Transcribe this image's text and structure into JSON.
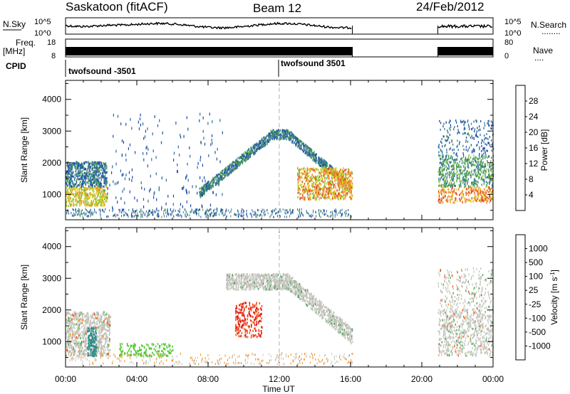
{
  "header": {
    "station": "Saskatoon (fitACF)",
    "beam": "Beam 12",
    "date": "24/Feb/2012"
  },
  "top_panels": {
    "nsky_label": "N.Sky",
    "nsearch_label": "N.Search",
    "nsky_ticks": [
      "10^5",
      "10^0"
    ],
    "nsearch_ticks": [
      "10^5",
      "10^0"
    ],
    "freq_label": "Freq.",
    "freq_unit": "[MHz]",
    "freq_ticks": [
      "18",
      "8"
    ],
    "nave_label": "Nave",
    "nave_ticks": [
      "80",
      "0"
    ],
    "cpid_label": "CPID",
    "cpid_segments": [
      "twofsound -3501",
      "twofsound 3501"
    ]
  },
  "colors": {
    "power_scale": [
      "#0a1fd6",
      "#1f4aa8",
      "#2c6aa0",
      "#3a8a6e",
      "#55a845",
      "#8cc43a",
      "#d8d020",
      "#f0a020",
      "#f07020",
      "#e03c1c",
      "#e00a0a"
    ],
    "velocity_scale": [
      "#e00a0a",
      "#f05018",
      "#f08818",
      "#f0c020",
      "#c0c0b0",
      "#c8c8c8",
      "#50c830",
      "#3ca050",
      "#2a8a88",
      "#1a4aa8"
    ],
    "velocity_common": "#c4c4bc",
    "axis": "#000000",
    "midday_line": "#b0b0b0"
  },
  "chart_data": [
    {
      "type": "heatmap",
      "title": "",
      "xlabel": "",
      "ylabel": "Slant Range [km]",
      "x_ticks": [
        "00:00",
        "04:00",
        "08:00",
        "12:00",
        "16:00",
        "20:00",
        "00:00"
      ],
      "y_ticks": [
        "1000",
        "2000",
        "3000",
        "4000"
      ],
      "ylim": [
        200,
        4600
      ],
      "colorbar_label": "Power [dB]",
      "colorbar_ticks": [
        "4",
        "8",
        "12",
        "16",
        "20",
        "24",
        "28"
      ],
      "colorbar_range": [
        0,
        32
      ],
      "data_gap_hours": [
        16.1,
        20.9
      ],
      "features": [
        {
          "name": "early evening band",
          "t": [
            0.0,
            2.3
          ],
          "range_km": [
            600,
            2000
          ],
          "power_db": 12
        },
        {
          "name": "morning scatter",
          "t": [
            2.3,
            8.5
          ],
          "range_km": [
            300,
            3400
          ],
          "power_db": 6
        },
        {
          "name": "arc",
          "t": [
            7.5,
            16.1
          ],
          "range_km": [
            1000,
            3000
          ],
          "power_db": 10
        },
        {
          "name": "afternoon strong band",
          "t": [
            13.0,
            16.1
          ],
          "range_km": [
            800,
            1800
          ],
          "power_db": 24
        },
        {
          "name": "late evening band",
          "t": [
            20.9,
            24.0
          ],
          "range_km": [
            700,
            3300
          ],
          "power_db": 18
        }
      ]
    },
    {
      "type": "heatmap",
      "title": "",
      "xlabel": "Time UT",
      "ylabel": "Slant Range [km]",
      "x_ticks": [
        "00:00",
        "04:00",
        "08:00",
        "12:00",
        "16:00",
        "20:00",
        "00:00"
      ],
      "y_ticks": [
        "1000",
        "2000",
        "3000",
        "4000"
      ],
      "ylim": [
        200,
        4600
      ],
      "colorbar_label": "Velocity [m s",
      "colorbar_label_sup": "-1",
      "colorbar_label_tail": "]",
      "colorbar_ticks": [
        "1000",
        "500",
        "100",
        "25",
        "-25",
        "-100",
        "-500",
        "-1000"
      ],
      "colorbar_range": [
        -1200,
        1200
      ],
      "data_gap_hours": [
        16.1,
        20.9
      ],
      "features": [
        {
          "name": "ground scatter band",
          "t": [
            0.0,
            2.5
          ],
          "range_km": [
            500,
            1900
          ],
          "velocity_ms": 0
        },
        {
          "name": "green patches",
          "t": [
            3.0,
            6.0
          ],
          "range_km": [
            500,
            900
          ],
          "velocity_ms": 150
        },
        {
          "name": "orange patch",
          "t": [
            9.5,
            11.0
          ],
          "range_km": [
            1100,
            2200
          ],
          "velocity_ms": -300
        },
        {
          "name": "grey arc",
          "t": [
            9.0,
            16.1
          ],
          "range_km": [
            800,
            3000
          ],
          "velocity_ms": 0
        },
        {
          "name": "late evening band",
          "t": [
            20.9,
            24.0
          ],
          "range_km": [
            500,
            3300
          ],
          "velocity_ms": 0
        }
      ]
    }
  ]
}
